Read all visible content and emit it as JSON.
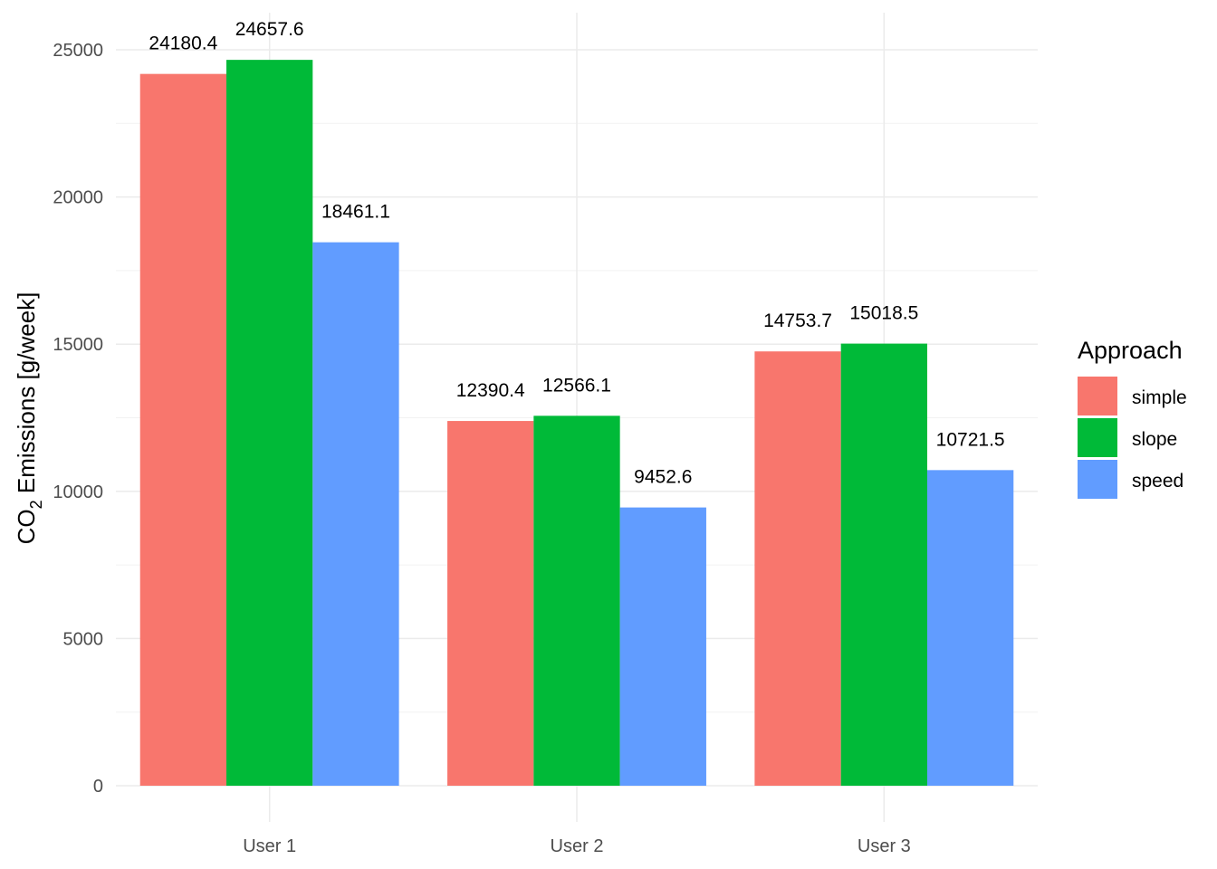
{
  "chart_data": {
    "type": "bar",
    "categories": [
      "User 1",
      "User 2",
      "User 3"
    ],
    "series": [
      {
        "name": "simple",
        "color": "#F8766D",
        "values": [
          24180.4,
          12390.4,
          14753.7
        ]
      },
      {
        "name": "slope",
        "color": "#00BA38",
        "values": [
          24657.6,
          12566.1,
          15018.5
        ]
      },
      {
        "name": "speed",
        "color": "#619CFF",
        "values": [
          18461.1,
          9452.6,
          10721.5
        ]
      }
    ],
    "data_labels": [
      [
        "24180.4",
        "12390.4",
        "14753.7"
      ],
      [
        "24657.6",
        "12566.1",
        "15018.5"
      ],
      [
        "18461.1",
        "9452.6",
        "10721.5"
      ]
    ],
    "ylabel": {
      "prefix": "CO",
      "subscript": "2",
      "suffix": " Emissions [g/week]"
    },
    "yticks": [
      0,
      5000,
      10000,
      15000,
      20000,
      25000
    ],
    "ylim": [
      0,
      26200
    ],
    "grid": true,
    "legend": {
      "title": "Approach",
      "position": "right"
    }
  }
}
